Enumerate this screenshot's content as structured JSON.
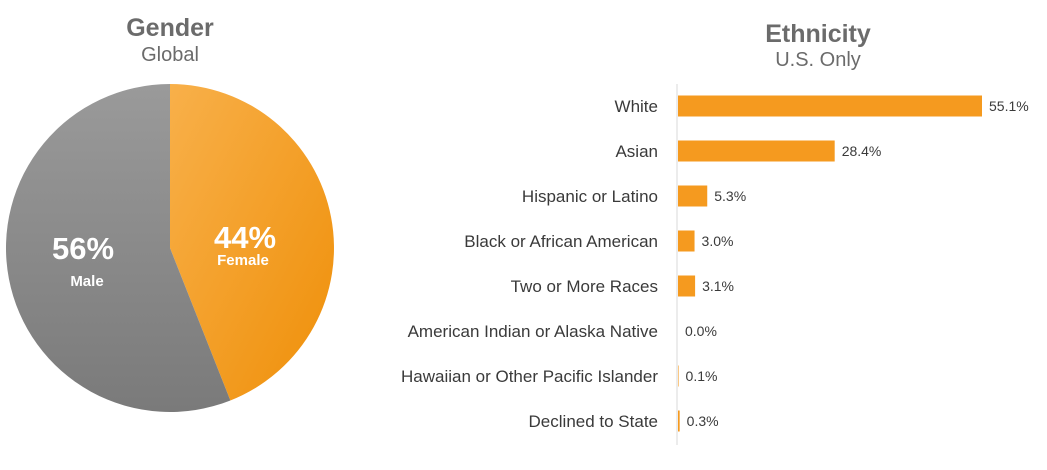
{
  "chart_data": [
    {
      "type": "pie",
      "title": "Gender",
      "subtitle": "Global",
      "slices": [
        {
          "name": "Female",
          "value": 44,
          "label": "44%",
          "color": "#f59a1f"
        },
        {
          "name": "Male",
          "value": 56,
          "label": "56%",
          "color": "#8a8a8a"
        }
      ]
    },
    {
      "type": "bar",
      "orientation": "horizontal",
      "title": "Ethnicity",
      "subtitle": "U.S. Only",
      "color": "#f59a1f",
      "categories": [
        "White",
        "Asian",
        "Hispanic or Latino",
        "Black or African American",
        "Two or More Races",
        "American Indian or Alaska Native",
        "Hawaiian or Other Pacific Islander",
        "Declined to State"
      ],
      "values": [
        55.1,
        28.4,
        5.3,
        3.0,
        3.1,
        0.0,
        0.1,
        0.3
      ],
      "value_labels": [
        "55.1%",
        "28.4%",
        "5.3%",
        "3.0%",
        "3.1%",
        "0.0%",
        "0.1%",
        "0.3%"
      ],
      "xlim": [
        0,
        55.1
      ]
    }
  ]
}
